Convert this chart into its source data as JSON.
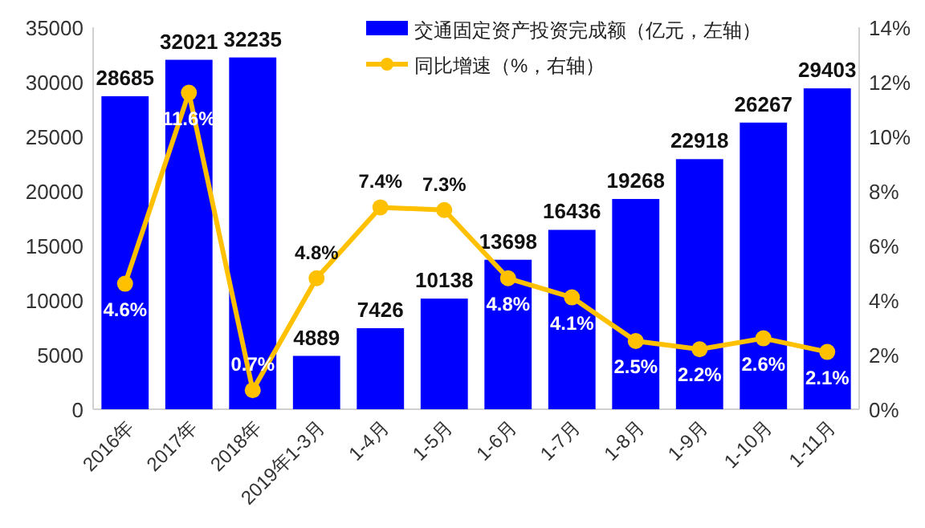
{
  "chart_data": {
    "type": "bar",
    "categories": [
      "2016年",
      "2017年",
      "2018年",
      "2019年1-3月",
      "1-4月",
      "1-5月",
      "1-6月",
      "1-7月",
      "1-8月",
      "1-9月",
      "1-10月",
      "1-11月"
    ],
    "series": [
      {
        "name": "交通固定资产投资完成额（亿元，左轴）",
        "color": "#0000ff",
        "values": [
          28685,
          32021,
          32235,
          4889,
          7426,
          10138,
          13698,
          16436,
          19268,
          22918,
          26267,
          29403
        ],
        "value_labels": [
          "28685",
          "32021",
          "32235",
          "4889",
          "7426",
          "10138",
          "13698",
          "16436",
          "19268",
          "22918",
          "26267",
          "29403"
        ]
      },
      {
        "name": "同比增速（%，右轴）",
        "type": "line",
        "axis": "y2",
        "color": "#ffc000",
        "marker": "circle",
        "values": [
          4.6,
          11.6,
          0.7,
          4.8,
          7.4,
          7.3,
          4.8,
          4.1,
          2.5,
          2.2,
          2.6,
          2.1
        ],
        "value_labels": [
          "4.6%",
          "11.6%",
          "0.7%",
          "4.8%",
          "7.4%",
          "7.3%",
          "4.8%",
          "4.1%",
          "2.5%",
          "2.2%",
          "2.6%",
          "2.1%"
        ]
      }
    ],
    "ylim": [
      0,
      35000
    ],
    "yticks": [
      0,
      5000,
      10000,
      15000,
      20000,
      25000,
      30000,
      35000
    ],
    "y2lim": [
      0,
      14
    ],
    "y2ticks": [
      {
        "value": 0,
        "label": "0%"
      },
      {
        "value": 2,
        "label": "2%"
      },
      {
        "value": 4,
        "label": "4%"
      },
      {
        "value": 6,
        "label": "6%"
      },
      {
        "value": 8,
        "label": "8%"
      },
      {
        "value": 10,
        "label": "10%"
      },
      {
        "value": 12,
        "label": "12%"
      },
      {
        "value": 14,
        "label": "14%"
      }
    ],
    "grid": false,
    "legend": "top right"
  }
}
